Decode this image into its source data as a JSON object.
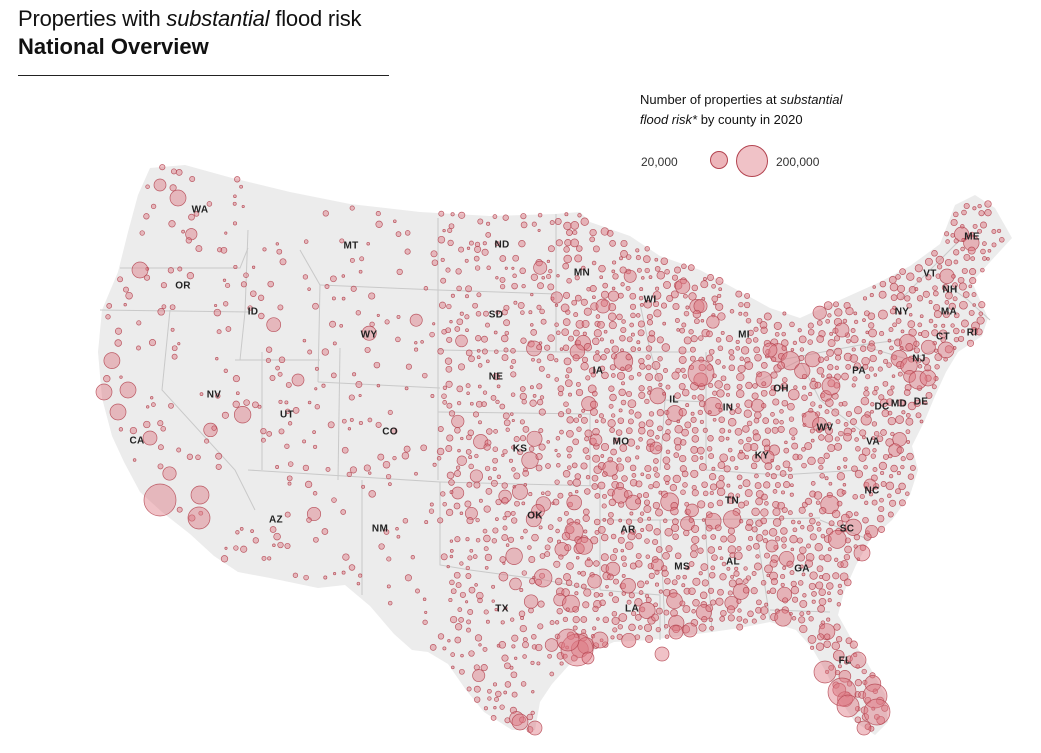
{
  "header": {
    "title_prefix": "Properties with ",
    "title_emphasis": "substantial",
    "title_suffix": " flood risk",
    "subtitle": "National Overview"
  },
  "legend": {
    "title_prefix": "Number of properties at ",
    "title_emphasis": "substantial",
    "title_line2_emphasis": "flood risk*",
    "title_line2_suffix": " by county in 2020",
    "low_value": "20,000",
    "high_value": "200,000"
  },
  "colors": {
    "land": "#ececec",
    "border": "#c9c9c9",
    "bubble_fill": "#de7882",
    "bubble_stroke": "#b3434f"
  },
  "states": [
    "WA",
    "OR",
    "CA",
    "ID",
    "NV",
    "MT",
    "WY",
    "UT",
    "AZ",
    "CO",
    "NM",
    "ND",
    "SD",
    "NE",
    "KS",
    "OK",
    "TX",
    "MN",
    "IA",
    "MO",
    "AR",
    "LA",
    "WI",
    "IL",
    "MI",
    "IN",
    "OH",
    "KY",
    "TN",
    "MS",
    "AL",
    "GA",
    "FL",
    "SC",
    "NC",
    "VA",
    "WV",
    "PA",
    "NY",
    "VT",
    "NH",
    "ME",
    "MA",
    "RI",
    "CT",
    "NJ",
    "DE",
    "MD",
    "DC"
  ]
}
